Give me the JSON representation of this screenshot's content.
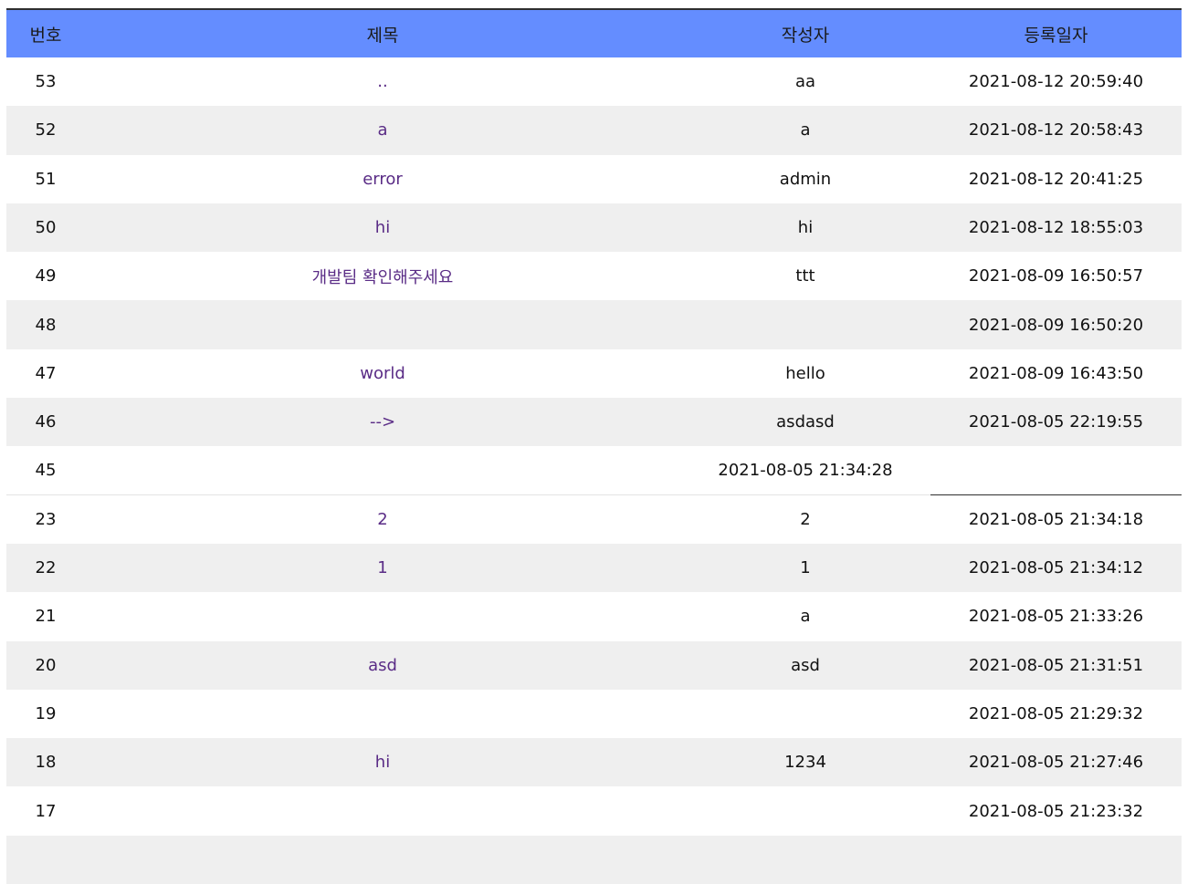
{
  "table": {
    "headers": {
      "num": "번호",
      "title": "제목",
      "author": "작성자",
      "date": "등록일자"
    },
    "rows": [
      {
        "num": "53",
        "title": "..",
        "author": "aa",
        "date": "2021-08-12 20:59:40"
      },
      {
        "num": "52",
        "title": "a",
        "author": "a",
        "date": "2021-08-12 20:58:43"
      },
      {
        "num": "51",
        "title": "error",
        "author": "admin",
        "date": "2021-08-12 20:41:25"
      },
      {
        "num": "50",
        "title": "hi",
        "author": "hi",
        "date": "2021-08-12 18:55:03"
      },
      {
        "num": "49",
        "title": "개발팀 확인해주세요",
        "author": "ttt",
        "date": "2021-08-09 16:50:57"
      },
      {
        "num": "48",
        "title": "",
        "author": "",
        "date": "2021-08-09 16:50:20"
      },
      {
        "num": "47",
        "title": "world",
        "author": "hello",
        "date": "2021-08-09 16:43:50"
      },
      {
        "num": "46",
        "title": "-->",
        "author": "asdasd",
        "date": "2021-08-05 22:19:55"
      },
      {
        "num": "45",
        "title": "",
        "author": "2021-08-05 21:34:28",
        "date": ""
      },
      {
        "num": "23",
        "title": "2",
        "author": "2",
        "date": "2021-08-05 21:34:18"
      },
      {
        "num": "22",
        "title": "1",
        "author": "1",
        "date": "2021-08-05 21:34:12"
      },
      {
        "num": "21",
        "title": "",
        "author": "a",
        "date": "2021-08-05 21:33:26"
      },
      {
        "num": "20",
        "title": "asd",
        "author": "asd",
        "date": "2021-08-05 21:31:51"
      },
      {
        "num": "19",
        "title": "",
        "author": "",
        "date": "2021-08-05 21:29:32"
      },
      {
        "num": "18",
        "title": "hi",
        "author": "1234",
        "date": "2021-08-05 21:27:46"
      },
      {
        "num": "17",
        "title": "",
        "author": "",
        "date": "2021-08-05 21:23:32"
      },
      {
        "num": "",
        "title": "",
        "author": "",
        "date": ""
      }
    ]
  },
  "colors": {
    "header_bg": "#648dff",
    "row_alt_bg": "#efefef",
    "link": "#5a2c86"
  }
}
